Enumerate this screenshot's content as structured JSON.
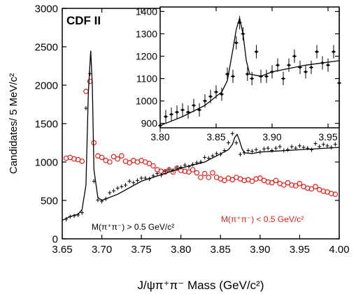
{
  "chart_data": [
    {
      "type": "scatter",
      "experiment_label": "CDF II",
      "xlabel": "J/ψπ⁺π⁻ Mass  (GeV/c²)",
      "ylabel": "Candidates/ 5 MeV/c²",
      "xlim": [
        3.65,
        4.0
      ],
      "ylim": [
        0,
        3000
      ],
      "xticks": [
        "3.65",
        "3.70",
        "3.75",
        "3.80",
        "3.85",
        "3.90",
        "3.95",
        "4.00"
      ],
      "yticks": [
        "0",
        "500",
        "1000",
        "1500",
        "2000",
        "2500",
        "3000"
      ],
      "grid": false,
      "annotations": [
        {
          "text": "M(π⁺π⁻) > 0.5 GeV/c²",
          "color": "#000000"
        },
        {
          "text": "M(π⁺π⁻) < 0.5 GeV/c²",
          "color": "#e0201b"
        }
      ],
      "series": [
        {
          "marker": "cross",
          "color": "#000000",
          "x": [
            3.655,
            3.66,
            3.665,
            3.67,
            3.675,
            3.68,
            3.685,
            3.69,
            3.695,
            3.7,
            3.705,
            3.71,
            3.715,
            3.72,
            3.725,
            3.73,
            3.735,
            3.74,
            3.745,
            3.75,
            3.755,
            3.76,
            3.765,
            3.77,
            3.775,
            3.78,
            3.785,
            3.79,
            3.795,
            3.8,
            3.805,
            3.81,
            3.815,
            3.82,
            3.825,
            3.83,
            3.835,
            3.84,
            3.845,
            3.85,
            3.855,
            3.86,
            3.865,
            3.87,
            3.875,
            3.88,
            3.885,
            3.89,
            3.895,
            3.9,
            3.905,
            3.91,
            3.915,
            3.92,
            3.925,
            3.93,
            3.935,
            3.94,
            3.945,
            3.95,
            3.955,
            3.96,
            3.965,
            3.97,
            3.975,
            3.98,
            3.985,
            3.99,
            3.995
          ],
          "y": [
            255,
            290,
            300,
            310,
            340,
            1700,
            2150,
            750,
            505,
            490,
            520,
            600,
            625,
            660,
            680,
            700,
            750,
            730,
            760,
            790,
            790,
            780,
            820,
            850,
            830,
            880,
            900,
            890,
            920,
            930,
            960,
            940,
            970,
            990,
            1000,
            1060,
            1050,
            1080,
            1110,
            1100,
            1150,
            1250,
            1370,
            1250,
            1100,
            1120,
            1150,
            1140,
            1160,
            1130,
            1170,
            1180,
            1150,
            1180,
            1200,
            1150,
            1160,
            1200,
            1180,
            1210,
            1190,
            1180,
            1160,
            1240,
            1200,
            1230,
            1210,
            1190,
            1230
          ]
        },
        {
          "marker": "circle",
          "color": "#e0201b",
          "x": [
            3.655,
            3.66,
            3.665,
            3.67,
            3.675,
            3.68,
            3.685,
            3.69,
            3.695,
            3.7,
            3.705,
            3.71,
            3.715,
            3.72,
            3.725,
            3.73,
            3.735,
            3.74,
            3.745,
            3.75,
            3.755,
            3.76,
            3.765,
            3.77,
            3.775,
            3.78,
            3.785,
            3.79,
            3.795,
            3.8,
            3.805,
            3.81,
            3.815,
            3.82,
            3.825,
            3.83,
            3.835,
            3.84,
            3.845,
            3.85,
            3.855,
            3.86,
            3.865,
            3.87,
            3.875,
            3.88,
            3.885,
            3.89,
            3.895,
            3.9,
            3.905,
            3.91,
            3.915,
            3.92,
            3.925,
            3.93,
            3.935,
            3.94,
            3.945,
            3.95,
            3.955,
            3.96,
            3.965,
            3.97,
            3.975,
            3.98,
            3.985,
            3.99,
            3.995
          ],
          "y": [
            1050,
            1060,
            1040,
            1030,
            1010,
            1920,
            2050,
            1250,
            1080,
            1060,
            1020,
            1000,
            1070,
            1040,
            1080,
            1010,
            990,
            1020,
            1000,
            1020,
            1000,
            980,
            950,
            900,
            880,
            870,
            900,
            870,
            920,
            890,
            880,
            870,
            900,
            860,
            800,
            850,
            800,
            860,
            800,
            780,
            760,
            790,
            770,
            800,
            780,
            760,
            770,
            750,
            780,
            790,
            760,
            740,
            730,
            760,
            720,
            700,
            730,
            700,
            690,
            720,
            680,
            660,
            650,
            680,
            640,
            620,
            610,
            590,
            580
          ]
        },
        {
          "marker": "line",
          "color": "#000000",
          "x": [
            3.65,
            3.66,
            3.67,
            3.675,
            3.68,
            3.683,
            3.686,
            3.688,
            3.69,
            3.695,
            3.7,
            3.72,
            3.75,
            3.8,
            3.83,
            3.86,
            3.865,
            3.868,
            3.871,
            3.874,
            3.877,
            3.88,
            3.89,
            3.9,
            3.95,
            4.0
          ],
          "y": [
            240,
            290,
            320,
            380,
            700,
            1900,
            2450,
            2000,
            900,
            540,
            500,
            580,
            750,
            920,
            1000,
            1160,
            1230,
            1320,
            1360,
            1280,
            1180,
            1120,
            1110,
            1130,
            1160,
            1190
          ]
        }
      ]
    },
    {
      "type": "scatter",
      "xlim": [
        3.8,
        3.96
      ],
      "ylim": [
        880,
        1420
      ],
      "xticks": [
        "3.80",
        "3.85",
        "3.90",
        "3.95"
      ],
      "yticks": [
        "900",
        "1000",
        "1100",
        "1200",
        "1300",
        "1400"
      ],
      "grid": false,
      "series": [
        {
          "marker": "errorbar",
          "color": "#000000",
          "x": [
            3.8,
            3.805,
            3.81,
            3.815,
            3.82,
            3.825,
            3.83,
            3.835,
            3.84,
            3.845,
            3.85,
            3.855,
            3.86,
            3.865,
            3.868,
            3.871,
            3.874,
            3.878,
            3.882,
            3.886,
            3.89,
            3.895,
            3.9,
            3.905,
            3.91,
            3.915,
            3.92,
            3.925,
            3.93,
            3.935,
            3.94,
            3.945,
            3.95,
            3.955,
            3.96
          ],
          "y": [
            890,
            930,
            940,
            950,
            960,
            950,
            980,
            960,
            1000,
            1020,
            1040,
            1030,
            1120,
            1110,
            1260,
            1350,
            1300,
            1120,
            1100,
            1220,
            1110,
            1110,
            1130,
            1160,
            1100,
            1160,
            1200,
            1150,
            1130,
            1150,
            1220,
            1170,
            1160,
            1220,
            1080
          ],
          "err": [
            30,
            30,
            30,
            30,
            30,
            30,
            30,
            30,
            30,
            30,
            30,
            30,
            30,
            30,
            30,
            30,
            30,
            30,
            30,
            30,
            30,
            30,
            30,
            30,
            30,
            30,
            30,
            30,
            30,
            30,
            30,
            30,
            30,
            30,
            30
          ]
        },
        {
          "marker": "line",
          "color": "#000000",
          "x": [
            3.8,
            3.82,
            3.84,
            3.855,
            3.86,
            3.865,
            3.868,
            3.871,
            3.874,
            3.877,
            3.88,
            3.89,
            3.9,
            3.93,
            3.96
          ],
          "y": [
            890,
            930,
            980,
            1040,
            1090,
            1230,
            1320,
            1370,
            1300,
            1180,
            1120,
            1110,
            1130,
            1160,
            1180
          ]
        }
      ]
    }
  ]
}
